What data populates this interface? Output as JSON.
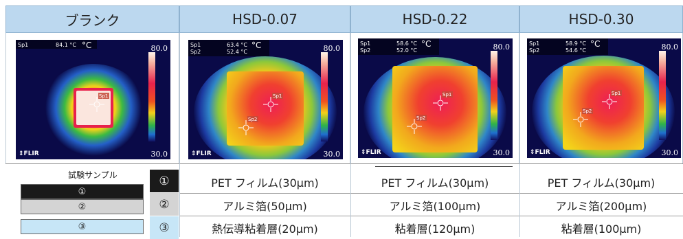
{
  "columns": [
    {
      "title": "ブランク",
      "spots": [
        {
          "label": "Sp1",
          "value": "84.1 °C"
        }
      ],
      "unit": "°C",
      "scale_max": "80.0",
      "scale_min": "30.0",
      "brand": "FLIR",
      "spot_labels": [
        "Sp1"
      ]
    },
    {
      "title": "HSD-0.07",
      "spots": [
        {
          "label": "Sp1",
          "value": "63.4 °C"
        },
        {
          "label": "Sp2",
          "value": "52.4 °C"
        }
      ],
      "unit": "°C",
      "scale_max": "80.0",
      "scale_min": "30.0",
      "brand": "FLIR",
      "spot_labels": [
        "Sp1",
        "Sp2"
      ]
    },
    {
      "title": "HSD-0.22",
      "spots": [
        {
          "label": "Sp1",
          "value": "58.6 °C"
        },
        {
          "label": "Sp2",
          "value": "52.0 °C"
        }
      ],
      "unit": "°C",
      "scale_max": "80.0",
      "scale_min": "30.0",
      "brand": "FLIR",
      "spot_labels": [
        "Sp1",
        "Sp2"
      ]
    },
    {
      "title": "HSD-0.30",
      "spots": [
        {
          "label": "Sp1",
          "value": "58.9 °C"
        },
        {
          "label": "Sp2",
          "value": "54.6 °C"
        }
      ],
      "unit": "°C",
      "scale_max": "80.0",
      "scale_min": "30.0",
      "brand": "FLIR",
      "spot_labels": [
        "Sp1",
        "Sp2"
      ]
    }
  ],
  "legend": {
    "title": "試験サンプル",
    "items": [
      "①",
      "②",
      "③"
    ]
  },
  "layers": [
    {
      "num": "①",
      "cells": [
        "PET フィルム(30μm)",
        "PET フィルム(30μm)",
        "PET フィルム(30μm)"
      ]
    },
    {
      "num": "②",
      "cells": [
        "アルミ箔(50μm)",
        "アルミ箔(100μm)",
        "アルミ箔(200μm)"
      ]
    },
    {
      "num": "③",
      "cells": [
        "熱伝導粘着層(20μm)",
        "粘着層(120μm)",
        "粘着層(100μm)"
      ]
    }
  ],
  "colors": {
    "header_bg": "#bcd8ef",
    "num1_bg": "#1a1a1a",
    "num2_bg": "#d4d4d4",
    "num3_bg": "#c7e6f7"
  }
}
